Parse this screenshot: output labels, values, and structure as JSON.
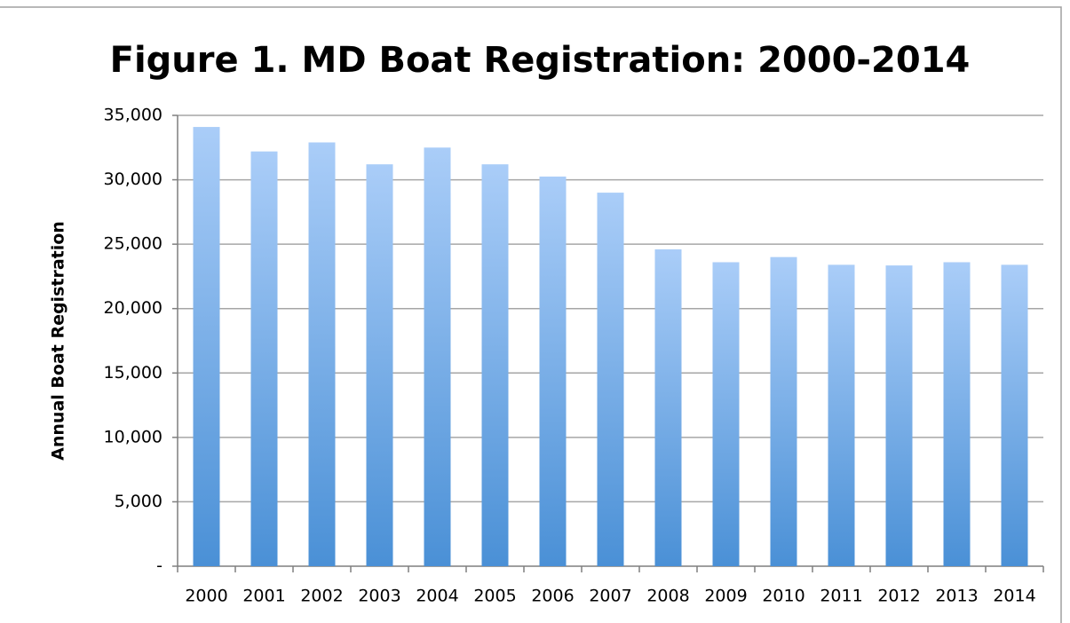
{
  "chart_data": {
    "type": "bar",
    "title": "Figure 1. MD Boat Registration: 2000-2014",
    "y_label": "Annual Boat Registration",
    "categories": [
      "2000",
      "2001",
      "2002",
      "2003",
      "2004",
      "2005",
      "2006",
      "2007",
      "2008",
      "2009",
      "2010",
      "2011",
      "2012",
      "2013",
      "2014"
    ],
    "values": [
      34100,
      32200,
      32900,
      31200,
      32500,
      31200,
      30250,
      29000,
      24600,
      23600,
      24000,
      23400,
      23350,
      23600,
      23400
    ],
    "color": [
      "#aacdf8",
      "#4a90d6"
    ],
    "ylim": [
      0,
      35000
    ],
    "yticks": [
      {
        "value": 0,
        "label": "-"
      },
      {
        "value": 5000,
        "label": "5,000"
      },
      {
        "value": 10000,
        "label": "10,000"
      },
      {
        "value": 15000,
        "label": "15,000"
      },
      {
        "value": 20000,
        "label": "20,000"
      },
      {
        "value": 25000,
        "label": "25,000"
      },
      {
        "value": 30000,
        "label": "30,000"
      },
      {
        "value": 35000,
        "label": "35,000"
      }
    ],
    "grid": true
  }
}
